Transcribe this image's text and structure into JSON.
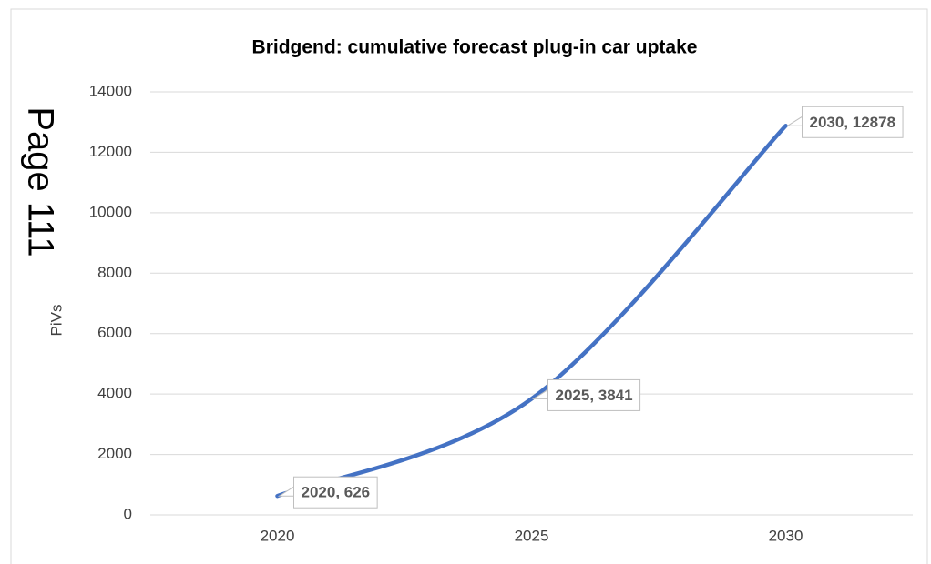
{
  "chart_data": {
    "type": "line",
    "title": "Bridgend: cumulative forecast plug-in car uptake",
    "annotation": "Page 111",
    "y_label": "PiVs",
    "categories": [
      "2020",
      "2025",
      "2030"
    ],
    "values": [
      626,
      3841,
      12878
    ],
    "value_labels": [
      "2020, 626",
      "2025, 3841",
      "2030, 12878"
    ],
    "color": "#4472c4",
    "smooth": true,
    "ylim": [
      0,
      14000
    ],
    "yticks": [
      0,
      2000,
      4000,
      6000,
      8000,
      10000,
      12000,
      14000
    ],
    "grid": true
  }
}
